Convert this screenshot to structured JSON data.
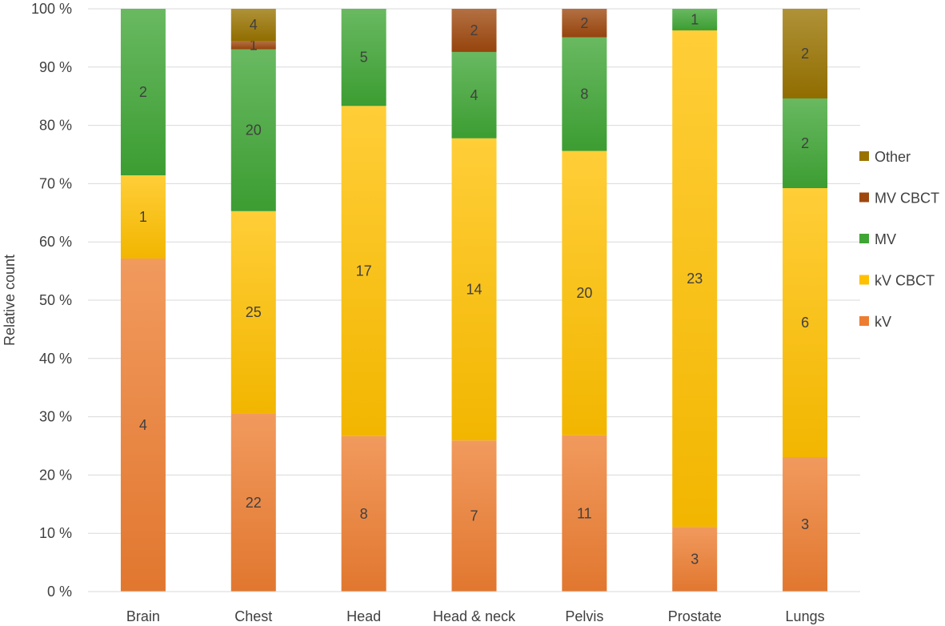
{
  "chart_data": {
    "type": "bar",
    "stacked": true,
    "percent_stacked": true,
    "title": "",
    "xlabel": "",
    "ylabel": "Relative count",
    "ylim": [
      0,
      100
    ],
    "grid": true,
    "legend_position": "right",
    "y_ticks": [
      "0 %",
      "10 %",
      "20 %",
      "30 %",
      "40 %",
      "50 %",
      "60 %",
      "70 %",
      "80 %",
      "90 %",
      "100 %"
    ],
    "categories": [
      "Brain",
      "Chest",
      "Head",
      "Head & neck",
      "Pelvis",
      "Prostate",
      "Lungs"
    ],
    "series": [
      {
        "name": "kV",
        "color": "#ED7D31",
        "values": [
          4,
          22,
          8,
          7,
          11,
          3,
          3
        ]
      },
      {
        "name": "kV CBCT",
        "color": "#FFC000",
        "values": [
          1,
          25,
          17,
          14,
          20,
          23,
          6
        ]
      },
      {
        "name": "MV",
        "color": "#3FA535",
        "values": [
          2,
          20,
          5,
          4,
          8,
          1,
          2
        ]
      },
      {
        "name": "MV CBCT",
        "color": "#9E480E",
        "values": [
          0,
          1,
          0,
          2,
          2,
          0,
          0
        ]
      },
      {
        "name": "Other",
        "color": "#997300",
        "values": [
          0,
          4,
          0,
          0,
          0,
          0,
          2
        ]
      }
    ]
  }
}
